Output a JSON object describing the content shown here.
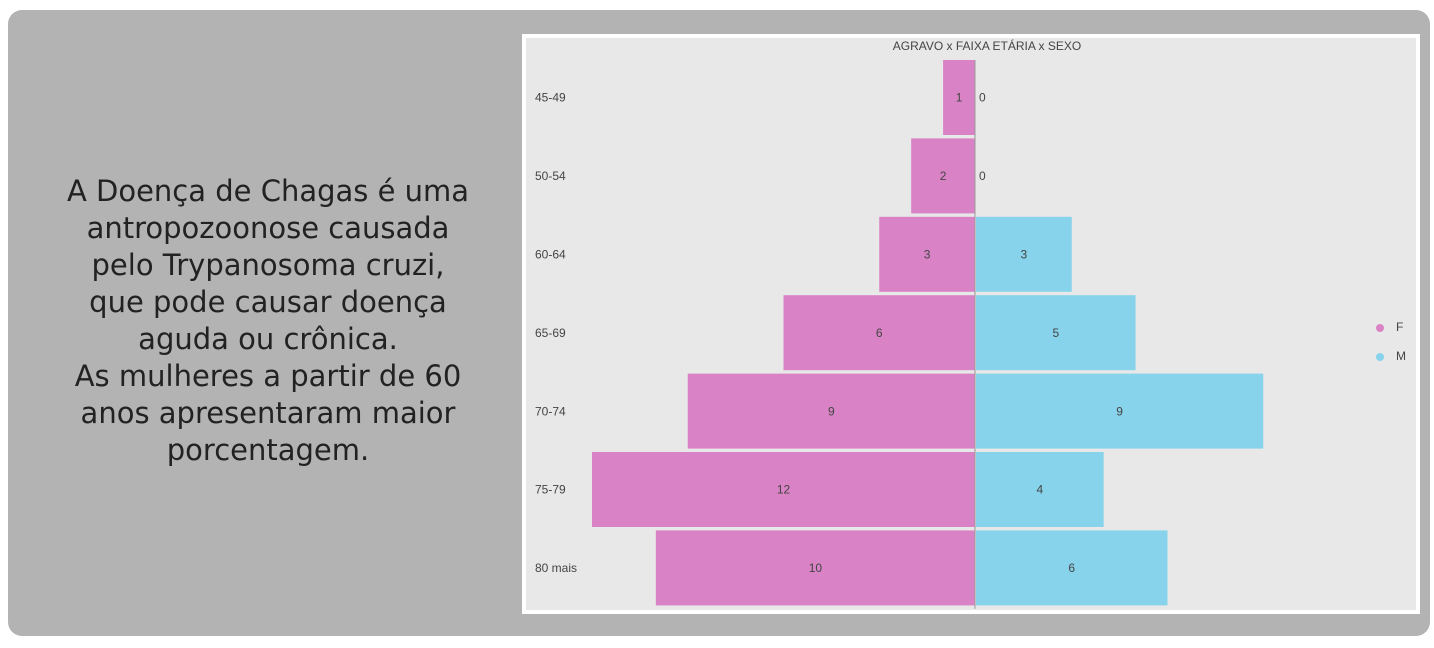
{
  "panel": {
    "lines": [
      "A Doença de Chagas é uma",
      "antropozoonose causada",
      "pelo Trypanosoma cruzi,",
      "que pode causar doença",
      "aguda ou crônica.",
      "As mulheres a partir de 60",
      "anos apresentaram maior",
      "porcentagem."
    ]
  },
  "chart_data": {
    "type": "pyramid",
    "title": "AGRAVO x FAIXA ETÁRIA x SEXO",
    "categories": [
      "45-49",
      "50-54",
      "60-64",
      "65-69",
      "70-74",
      "75-79",
      "80 mais"
    ],
    "series": [
      {
        "name": "F",
        "color": "#d983c6",
        "values": [
          1,
          2,
          3,
          6,
          9,
          12,
          10
        ]
      },
      {
        "name": "M",
        "color": "#88d3ec",
        "values": [
          0,
          0,
          3,
          5,
          9,
          4,
          6
        ]
      }
    ]
  }
}
